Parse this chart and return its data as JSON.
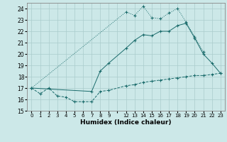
{
  "xlabel": "Humidex (Indice chaleur)",
  "bg_color": "#cce8e8",
  "line_color": "#1a6b6b",
  "grid_color": "#aacccc",
  "min_x": [
    0,
    1,
    2,
    3,
    4,
    5,
    6,
    7,
    8,
    9,
    12,
    13,
    14,
    15,
    16,
    17,
    18,
    19,
    20,
    21,
    22,
    23
  ],
  "min_y": [
    17.0,
    16.5,
    17.0,
    16.3,
    16.2,
    15.8,
    15.8,
    15.8,
    16.7,
    16.8,
    17.2,
    17.3,
    17.5,
    17.6,
    17.7,
    17.8,
    17.9,
    18.0,
    18.1,
    18.1,
    18.2,
    18.3
  ],
  "mid_x": [
    0,
    7,
    8,
    9,
    12,
    13,
    14,
    15,
    16,
    17,
    18,
    19,
    20,
    21,
    22,
    23
  ],
  "mid_y": [
    17.0,
    16.7,
    18.5,
    19.2,
    20.5,
    21.2,
    21.7,
    21.6,
    22.0,
    22.0,
    22.5,
    22.7,
    21.4,
    20.0,
    19.2,
    18.3
  ],
  "max_x": [
    0,
    12,
    13,
    14,
    15,
    16,
    17,
    18,
    19,
    20,
    21
  ],
  "max_y": [
    17.0,
    23.7,
    23.4,
    24.2,
    23.2,
    23.1,
    23.6,
    24.0,
    22.8,
    21.5,
    20.2
  ],
  "ylim": [
    15.0,
    24.5
  ],
  "yticks": [
    15,
    16,
    17,
    18,
    19,
    20,
    21,
    22,
    23,
    24
  ],
  "xtick_pos": [
    0,
    1,
    2,
    3,
    4,
    5,
    6,
    7,
    8,
    9,
    11,
    12,
    13,
    14,
    15,
    16,
    17,
    18,
    19,
    20,
    21,
    22,
    23,
    24
  ],
  "xtick_labels": [
    "0",
    "1",
    "2",
    "3",
    "4",
    "5",
    "6",
    "7",
    "8",
    "9",
    "",
    "12",
    "13",
    "14",
    "15",
    "16",
    "17",
    "18",
    "19",
    "20",
    "21",
    "22",
    "23",
    ""
  ],
  "data_xtick_map": {
    "0": 0,
    "1": 1,
    "2": 2,
    "3": 3,
    "4": 4,
    "5": 5,
    "6": 6,
    "7": 7,
    "8": 8,
    "9": 9,
    "12": 11,
    "13": 12,
    "14": 13,
    "15": 14,
    "16": 15,
    "17": 16,
    "18": 17,
    "19": 18,
    "20": 19,
    "21": 20,
    "22": 21,
    "23": 22
  }
}
